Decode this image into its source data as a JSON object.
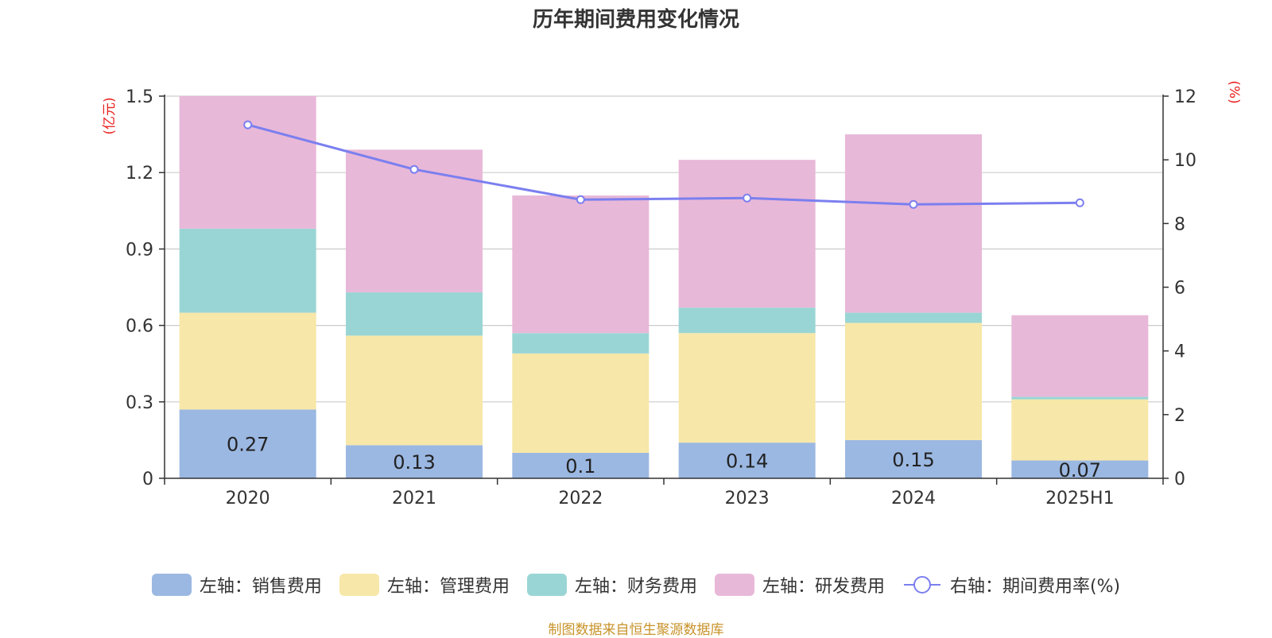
{
  "chart_data": {
    "type": "bar",
    "title": "历年期间费用变化情况",
    "categories": [
      "2020",
      "2021",
      "2022",
      "2023",
      "2024",
      "2025H1"
    ],
    "y_left": {
      "unit_label": "(亿元)",
      "ylim": [
        0,
        1.5
      ],
      "ticks": [
        "0",
        "0.3",
        "0.6",
        "0.9",
        "1.2",
        "1.5"
      ]
    },
    "y_right": {
      "unit_label": "(%)",
      "ylim": [
        0,
        12
      ],
      "ticks": [
        "0",
        "2",
        "4",
        "6",
        "8",
        "10",
        "12"
      ]
    },
    "series": [
      {
        "name": "左轴：销售费用",
        "type": "bar",
        "axis": "left",
        "color": "#9bb8e2",
        "values": [
          0.27,
          0.13,
          0.1,
          0.14,
          0.15,
          0.07
        ],
        "labels": [
          "0.27",
          "0.13",
          "0.1",
          "0.14",
          "0.15",
          "0.07"
        ]
      },
      {
        "name": "左轴：管理费用",
        "type": "bar",
        "axis": "left",
        "color": "#f7e7a8",
        "values": [
          0.38,
          0.43,
          0.39,
          0.43,
          0.46,
          0.24
        ]
      },
      {
        "name": "左轴：财务费用",
        "type": "bar",
        "axis": "left",
        "color": "#9ad5d5",
        "values": [
          0.33,
          0.17,
          0.08,
          0.1,
          0.04,
          0.01
        ]
      },
      {
        "name": "左轴：研发费用",
        "type": "bar",
        "axis": "left",
        "color": "#e8b8d8",
        "values": [
          0.52,
          0.56,
          0.54,
          0.58,
          0.7,
          0.32
        ]
      },
      {
        "name": "右轴：期间费用率(%)",
        "type": "line",
        "axis": "right",
        "color": "#7b7fef",
        "values": [
          11.1,
          9.7,
          8.75,
          8.8,
          8.6,
          8.65
        ]
      }
    ],
    "grid": true,
    "legend_position": "bottom"
  },
  "source_note": "制图数据来自恒生聚源数据库",
  "colors": {
    "unit_label": "#e8201e",
    "source_note": "#c8932a",
    "axis": "#333333",
    "grid": "#cccccc"
  }
}
